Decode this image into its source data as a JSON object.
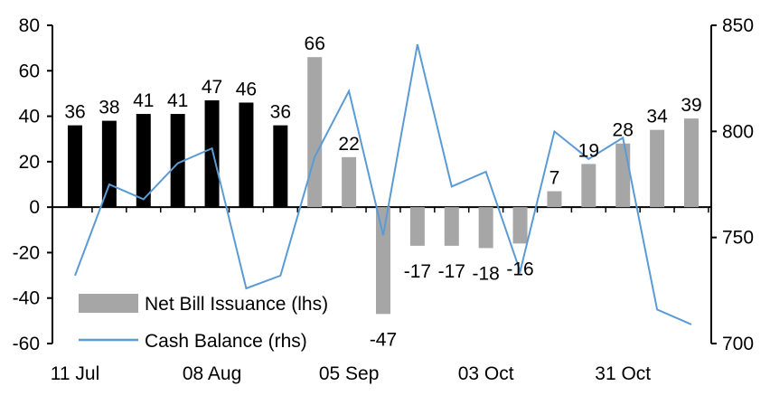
{
  "chart_data": {
    "type": "bar+line",
    "x_tick_labels": [
      "11 Jul",
      "08 Aug",
      "05 Sep",
      "03 Oct",
      "31 Oct"
    ],
    "x_tick_label_every": 4,
    "series": [
      {
        "name": "Net Bill Issuance (lhs)",
        "type": "bar",
        "axis": "left",
        "values": [
          36,
          38,
          41,
          41,
          47,
          46,
          36,
          66,
          22,
          -47,
          -17,
          -17,
          -18,
          -16,
          7,
          19,
          28,
          34,
          39
        ],
        "colors": [
          "#000000",
          "#000000",
          "#000000",
          "#000000",
          "#000000",
          "#000000",
          "#000000",
          "#a6a6a6",
          "#a6a6a6",
          "#a6a6a6",
          "#a6a6a6",
          "#a6a6a6",
          "#a6a6a6",
          "#a6a6a6",
          "#a6a6a6",
          "#a6a6a6",
          "#a6a6a6",
          "#a6a6a6",
          "#a6a6a6"
        ],
        "legend_color": "#a6a6a6"
      },
      {
        "name": "Cash Balance (rhs)",
        "type": "line",
        "axis": "right",
        "color": "#5b9bd5",
        "values": [
          732,
          775,
          768,
          785,
          792,
          726,
          732,
          788,
          819,
          751,
          841,
          774,
          781,
          734,
          800,
          787,
          797,
          716,
          709
        ]
      }
    ],
    "left_axis": {
      "ylim": [
        -60,
        80
      ],
      "ticks": [
        80,
        60,
        40,
        20,
        0,
        -20,
        -40,
        -60
      ]
    },
    "right_axis": {
      "ylim": [
        700,
        850
      ],
      "ticks": [
        850,
        800,
        750,
        700
      ]
    },
    "legend_placement": "bottom-left",
    "grid": false
  }
}
